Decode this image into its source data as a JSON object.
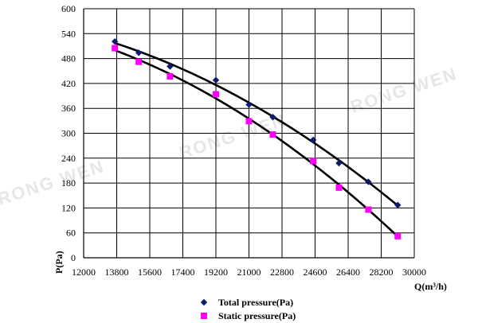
{
  "chart_data": {
    "type": "scatter",
    "xlabel": "Q(m³/h)",
    "ylabel": "P(Pa)",
    "xlim": [
      12000,
      30000
    ],
    "ylim": [
      0,
      600
    ],
    "x_ticks": [
      12000,
      13800,
      15600,
      17400,
      19200,
      21000,
      22800,
      24600,
      26400,
      28200,
      30000
    ],
    "y_ticks": [
      0,
      60,
      120,
      180,
      240,
      300,
      360,
      420,
      480,
      540,
      600
    ],
    "grid": true,
    "legend_position": "bottom-center",
    "watermark_text": "RONG WEN",
    "series": [
      {
        "name": "Total pressure(Pa)",
        "marker": "diamond",
        "color": "#0c1a6e",
        "x": [
          13700,
          15000,
          16700,
          19200,
          21000,
          22300,
          24500,
          25900,
          27500,
          29100
        ],
        "values": [
          521,
          494,
          461,
          428,
          369,
          339,
          284,
          228,
          183,
          127
        ],
        "trend_line": true
      },
      {
        "name": "Static pressure(Pa)",
        "marker": "square",
        "color": "#ff00ff",
        "x": [
          13700,
          15000,
          16700,
          19200,
          21000,
          22300,
          24500,
          25900,
          27500,
          29100
        ],
        "values": [
          505,
          472,
          437,
          394,
          329,
          297,
          233,
          169,
          116,
          52
        ],
        "trend_line": true
      }
    ]
  }
}
